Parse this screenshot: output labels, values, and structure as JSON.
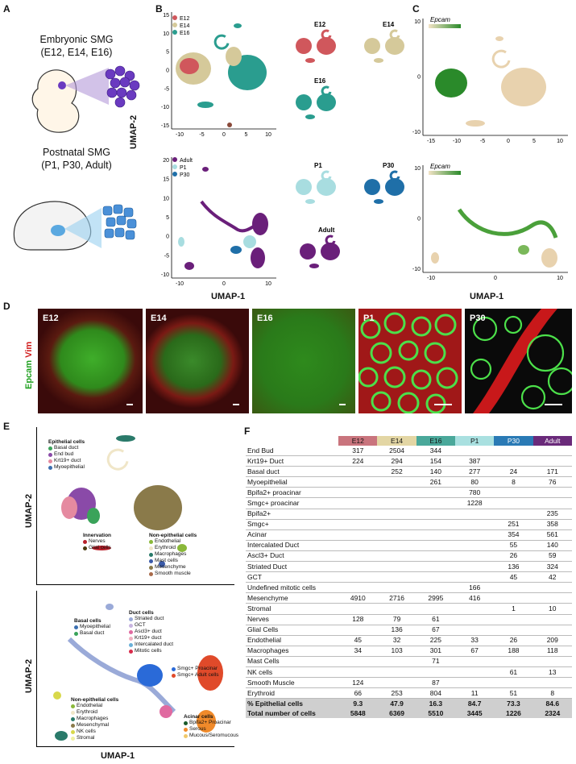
{
  "panels": {
    "a": "A",
    "b": "B",
    "c": "C",
    "d": "D",
    "e": "E",
    "f": "F"
  },
  "panel_a": {
    "embryonic_title": "Embryonic SMG",
    "embryonic_sub": "(E12, E14, E16)",
    "postnatal_title": "Postnatal SMG",
    "postnatal_sub": "(P1, P30, Adult)"
  },
  "panel_b": {
    "top_legend": [
      "E12",
      "E14",
      "E16"
    ],
    "top_legend_colors": [
      "#d0575c",
      "#d5c99a",
      "#2a9d8f"
    ],
    "bottom_legend": [
      "Adult",
      "P1",
      "P30"
    ],
    "bottom_legend_colors": [
      "#6a1f7a",
      "#a8dde0",
      "#1f6fa8"
    ],
    "facet_top": [
      "E12",
      "E14",
      "E16"
    ],
    "facet_bottom": [
      "P1",
      "P30",
      "Adult"
    ],
    "top_y_ticks": [
      "15",
      "10",
      "5",
      "0",
      "-5",
      "-10",
      "-15"
    ],
    "top_x_ticks": [
      "-10",
      "-5",
      "0",
      "5",
      "10"
    ],
    "bottom_y_ticks": [
      "20",
      "15",
      "10",
      "5",
      "0",
      "-5",
      "-10"
    ],
    "bottom_x_ticks": [
      "-10",
      "0",
      "10"
    ],
    "y_axis": "UMAP-2",
    "x_axis": "UMAP-1"
  },
  "panel_c": {
    "gene_top": "Epcam",
    "gene_bottom": "Epcam",
    "top_y_ticks": [
      "10",
      "0",
      "-10"
    ],
    "top_x_ticks": [
      "-15",
      "-10",
      "-5",
      "0",
      "5",
      "10"
    ],
    "bottom_y_ticks": [
      "10",
      "0",
      "-10"
    ],
    "bottom_x_ticks": [
      "-10",
      "0",
      "10"
    ],
    "x_axis": "UMAP-1"
  },
  "panel_d": {
    "y_label_epcam": "Epcam",
    "y_label_vim": "Vim",
    "stages": [
      "E12",
      "E14",
      "E16",
      "P1",
      "P30"
    ]
  },
  "panel_e": {
    "y_axis_top": "UMAP-2",
    "y_axis_bottom": "UMAP-2",
    "x_axis": "UMAP-1",
    "top_groups": [
      {
        "title": "Epithelial cells",
        "items": [
          {
            "label": "Basal duct",
            "color": "#3aa35a"
          },
          {
            "label": "End bud",
            "color": "#8a4aa8"
          },
          {
            "label": "Krt19+ duct",
            "color": "#e58aa0"
          },
          {
            "label": "Myoepithelial",
            "color": "#3c6fb0"
          }
        ]
      },
      {
        "title": "Innervation",
        "items": [
          {
            "label": "Nerves",
            "color": "#b8202a"
          },
          {
            "label": "Glial cells",
            "color": "#4a3a10"
          }
        ]
      },
      {
        "title": "Non-epithelial cells",
        "items": [
          {
            "label": "Endothelial",
            "color": "#8ab83a"
          },
          {
            "label": "Erythroid",
            "color": "#f0e6c8"
          },
          {
            "label": "Macrophages",
            "color": "#2a7a6a"
          },
          {
            "label": "Mast cells",
            "color": "#3a5aa8"
          },
          {
            "label": "Mesenchyme",
            "color": "#8a7a4a"
          },
          {
            "label": "Smooth muscle",
            "color": "#a86a4a"
          }
        ]
      }
    ],
    "bottom_groups": [
      {
        "title": "Duct cells",
        "items": [
          {
            "label": "Striated duct",
            "color": "#9aaad8"
          },
          {
            "label": "GCT",
            "color": "#c8b4e0"
          },
          {
            "label": "Ascl3+ duct",
            "color": "#e06aa0"
          },
          {
            "label": "Krt19+ duct",
            "color": "#f0b0c0"
          },
          {
            "label": "Intercalated duct",
            "color": "#6ab0d8"
          },
          {
            "label": "Mitotic cells",
            "color": "#d82a4a"
          }
        ]
      },
      {
        "title": "Basal cells",
        "items": [
          {
            "label": "Myoepithelial",
            "color": "#3c6fb0"
          },
          {
            "label": "Basal duct",
            "color": "#3aa35a"
          }
        ]
      },
      {
        "title": "",
        "items": [
          {
            "label": "Smgc+ Proacinar",
            "color": "#2a6ad8"
          },
          {
            "label": "Smgc+ Adult cells",
            "color": "#e04a2a"
          }
        ]
      },
      {
        "title": "Non-epithelial cells",
        "items": [
          {
            "label": "Endothelial",
            "color": "#8ab83a"
          },
          {
            "label": "Erythroid",
            "color": "#f0e6c8"
          },
          {
            "label": "Macrophages",
            "color": "#2a7a6a"
          },
          {
            "label": "Mesenchymal",
            "color": "#8a7a4a"
          },
          {
            "label": "NK cells",
            "color": "#d8d84a"
          },
          {
            "label": "Stromal",
            "color": "#f0f0a0"
          }
        ]
      },
      {
        "title": "Acinar cells",
        "items": [
          {
            "label": "Bpifa2+ Proacinar",
            "color": "#1a5a2a"
          },
          {
            "label": "Serous",
            "color": "#f08a2a"
          },
          {
            "label": "Mucous/Seromucous",
            "color": "#f0c86a"
          }
        ]
      }
    ]
  },
  "table": {
    "columns": [
      {
        "label": "E12",
        "color": "#c9747d"
      },
      {
        "label": "E14",
        "color": "#e3d6a4"
      },
      {
        "label": "E16",
        "color": "#4aa89a"
      },
      {
        "label": "P1",
        "color": "#a9e0e0"
      },
      {
        "label": "P30",
        "color": "#2a7ab5"
      },
      {
        "label": "Adult",
        "color": "#6a2a7a"
      }
    ],
    "rows": [
      {
        "label": "End Bud",
        "values": [
          "317",
          "2504",
          "344",
          "",
          "",
          ""
        ]
      },
      {
        "label": "Krt19+ Duct",
        "values": [
          "224",
          "294",
          "154",
          "387",
          "",
          ""
        ]
      },
      {
        "label": "Basal duct",
        "values": [
          "",
          "252",
          "140",
          "277",
          "24",
          "171"
        ]
      },
      {
        "label": "Myoepithelial",
        "values": [
          "",
          "",
          "261",
          "80",
          "8",
          "76"
        ]
      },
      {
        "label": "Bpifa2+ proacinar",
        "values": [
          "",
          "",
          "",
          "780",
          "",
          ""
        ]
      },
      {
        "label": "Smgc+ proacinar",
        "values": [
          "",
          "",
          "",
          "1228",
          "",
          ""
        ]
      },
      {
        "label": "Bpifa2+",
        "values": [
          "",
          "",
          "",
          "",
          "",
          "235"
        ]
      },
      {
        "label": "Smgc+",
        "values": [
          "",
          "",
          "",
          "",
          "251",
          "358"
        ]
      },
      {
        "label": "Acinar",
        "values": [
          "",
          "",
          "",
          "",
          "354",
          "561"
        ]
      },
      {
        "label": "Intercalated Duct",
        "values": [
          "",
          "",
          "",
          "",
          "55",
          "140"
        ]
      },
      {
        "label": "Ascl3+ Duct",
        "values": [
          "",
          "",
          "",
          "",
          "26",
          "59"
        ]
      },
      {
        "label": "Striated Duct",
        "values": [
          "",
          "",
          "",
          "",
          "136",
          "324"
        ]
      },
      {
        "label": "GCT",
        "values": [
          "",
          "",
          "",
          "",
          "45",
          "42"
        ]
      },
      {
        "label": "Undefined mitotic cells",
        "values": [
          "",
          "",
          "",
          "166",
          "",
          ""
        ]
      },
      {
        "label": "Mesenchyme",
        "values": [
          "4910",
          "2716",
          "2995",
          "416",
          "",
          ""
        ]
      },
      {
        "label": "Stromal",
        "values": [
          "",
          "",
          "",
          "",
          "1",
          "10"
        ]
      },
      {
        "label": "Nerves",
        "values": [
          "128",
          "79",
          "61",
          "",
          "",
          ""
        ]
      },
      {
        "label": "Glial Cells",
        "values": [
          "",
          "136",
          "67",
          "",
          "",
          ""
        ]
      },
      {
        "label": "Endothelial",
        "values": [
          "45",
          "32",
          "225",
          "33",
          "26",
          "209"
        ]
      },
      {
        "label": "Macrophages",
        "values": [
          "34",
          "103",
          "301",
          "67",
          "188",
          "118"
        ]
      },
      {
        "label": "Mast Cells",
        "values": [
          "",
          "",
          "71",
          "",
          "",
          ""
        ]
      },
      {
        "label": "NK cells",
        "values": [
          "",
          "",
          "",
          "",
          "61",
          "13"
        ]
      },
      {
        "label": "Smooth Muscle",
        "values": [
          "124",
          "",
          "87",
          "",
          "",
          ""
        ]
      },
      {
        "label": "Erythroid",
        "values": [
          "66",
          "253",
          "804",
          "11",
          "51",
          "8"
        ]
      }
    ],
    "summary": [
      {
        "label": "% Epithelial cells",
        "values": [
          "9.3",
          "47.9",
          "16.3",
          "84.7",
          "73.3",
          "84.6"
        ]
      },
      {
        "label": "Total number of cells",
        "values": [
          "5848",
          "6369",
          "5510",
          "3445",
          "1226",
          "2324"
        ]
      }
    ]
  }
}
